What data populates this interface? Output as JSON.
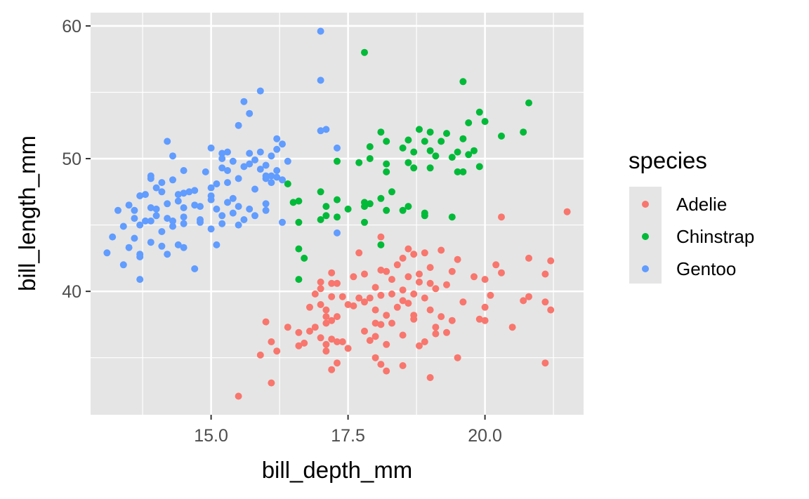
{
  "chart_data": {
    "type": "scatter",
    "title": "",
    "xlabel": "bill_depth_mm",
    "ylabel": "bill_length_mm",
    "xlim": [
      12.8,
      21.8
    ],
    "ylim": [
      30.7,
      61.0
    ],
    "x_ticks": [
      15.0,
      17.5,
      20.0
    ],
    "x_tick_labels": [
      "15.0",
      "17.5",
      "20.0"
    ],
    "x_minor_ticks": [
      13.75,
      16.25,
      18.75,
      21.25
    ],
    "y_ticks": [
      40,
      50,
      60
    ],
    "y_tick_labels": [
      "40",
      "50",
      "60"
    ],
    "y_minor_ticks": [
      35,
      45,
      55
    ],
    "grid": true,
    "panel_background": "#E5E5E5",
    "grid_color": "#FFFFFF",
    "legend": {
      "title": "species",
      "placement": "right",
      "entries": [
        "Adelie",
        "Chinstrap",
        "Gentoo"
      ]
    },
    "series": [
      {
        "name": "Adelie",
        "color": "#F8766D",
        "points": [
          [
            15.5,
            32.1
          ],
          [
            16.0,
            37.7
          ],
          [
            15.9,
            35.2
          ],
          [
            16.1,
            36.2
          ],
          [
            16.1,
            33.1
          ],
          [
            16.2,
            35.5
          ],
          [
            16.6,
            35.9
          ],
          [
            16.6,
            36.9
          ],
          [
            16.4,
            37.3
          ],
          [
            16.7,
            36.1
          ],
          [
            16.8,
            37.0
          ],
          [
            16.8,
            38.8
          ],
          [
            16.9,
            37.3
          ],
          [
            16.9,
            39.8
          ],
          [
            17.0,
            36.5
          ],
          [
            17.0,
            40.2
          ],
          [
            17.0,
            40.7
          ],
          [
            17.0,
            39.0
          ],
          [
            17.1,
            38.6
          ],
          [
            17.1,
            37.6
          ],
          [
            17.1,
            35.5
          ],
          [
            17.1,
            36.0
          ],
          [
            17.1,
            38.1
          ],
          [
            17.2,
            36.4
          ],
          [
            17.2,
            40.6
          ],
          [
            17.2,
            41.4
          ],
          [
            17.2,
            39.6
          ],
          [
            17.2,
            34.1
          ],
          [
            17.2,
            37.8
          ],
          [
            17.3,
            34.6
          ],
          [
            17.3,
            36.2
          ],
          [
            17.3,
            38.1
          ],
          [
            17.3,
            40.6
          ],
          [
            17.4,
            39.6
          ],
          [
            17.4,
            36.2
          ],
          [
            17.5,
            35.7
          ],
          [
            17.5,
            39.0
          ],
          [
            17.6,
            41.1
          ],
          [
            17.6,
            38.9
          ],
          [
            17.7,
            39.5
          ],
          [
            17.7,
            42.9
          ],
          [
            17.8,
            41.3
          ],
          [
            17.8,
            37.0
          ],
          [
            17.8,
            39.2
          ],
          [
            17.9,
            36.3
          ],
          [
            17.9,
            39.5
          ],
          [
            18.0,
            36.6
          ],
          [
            18.0,
            37.6
          ],
          [
            18.0,
            40.3
          ],
          [
            18.0,
            35.0
          ],
          [
            18.0,
            38.6
          ],
          [
            18.1,
            44.1
          ],
          [
            18.1,
            37.5
          ],
          [
            18.1,
            39.7
          ],
          [
            18.1,
            34.5
          ],
          [
            18.1,
            41.6
          ],
          [
            18.2,
            41.5
          ],
          [
            18.2,
            38.2
          ],
          [
            18.2,
            36.0
          ],
          [
            18.2,
            34.0
          ],
          [
            18.3,
            39.8
          ],
          [
            18.3,
            37.6
          ],
          [
            18.3,
            40.9
          ],
          [
            18.4,
            42.0
          ],
          [
            18.4,
            38.8
          ],
          [
            18.5,
            39.3
          ],
          [
            18.5,
            42.5
          ],
          [
            18.5,
            36.7
          ],
          [
            18.5,
            40.1
          ],
          [
            18.5,
            34.4
          ],
          [
            18.6,
            43.2
          ],
          [
            18.6,
            41.1
          ],
          [
            18.6,
            39.1
          ],
          [
            18.7,
            37.9
          ],
          [
            18.7,
            42.8
          ],
          [
            18.7,
            39.8
          ],
          [
            18.7,
            38.2
          ],
          [
            18.8,
            40.7
          ],
          [
            18.8,
            35.9
          ],
          [
            18.8,
            41.3
          ],
          [
            18.9,
            36.2
          ],
          [
            18.9,
            39.5
          ],
          [
            18.9,
            42.9
          ],
          [
            19.0,
            40.6
          ],
          [
            19.0,
            38.6
          ],
          [
            19.0,
            33.5
          ],
          [
            19.0,
            41.8
          ],
          [
            19.1,
            40.2
          ],
          [
            19.1,
            37.3
          ],
          [
            19.1,
            36.8
          ],
          [
            19.2,
            43.1
          ],
          [
            19.2,
            38.1
          ],
          [
            19.3,
            40.5
          ],
          [
            19.3,
            36.9
          ],
          [
            19.4,
            41.5
          ],
          [
            19.4,
            37.8
          ],
          [
            19.5,
            42.4
          ],
          [
            19.5,
            35.0
          ],
          [
            19.6,
            39.2
          ],
          [
            19.8,
            41.1
          ],
          [
            19.9,
            37.9
          ],
          [
            20.0,
            38.8
          ],
          [
            20.0,
            37.8
          ],
          [
            20.0,
            40.9
          ],
          [
            20.1,
            39.7
          ],
          [
            20.2,
            42.0
          ],
          [
            20.3,
            45.6
          ],
          [
            20.3,
            41.4
          ],
          [
            20.5,
            37.3
          ],
          [
            20.7,
            39.3
          ],
          [
            20.8,
            39.6
          ],
          [
            20.8,
            42.5
          ],
          [
            21.1,
            41.3
          ],
          [
            21.1,
            39.2
          ],
          [
            21.1,
            34.6
          ],
          [
            21.2,
            42.3
          ],
          [
            21.2,
            38.6
          ],
          [
            21.5,
            46.0
          ]
        ]
      },
      {
        "name": "Chinstrap",
        "color": "#00BA38",
        "points": [
          [
            17.8,
            58.0
          ],
          [
            19.6,
            55.8
          ],
          [
            20.8,
            54.2
          ],
          [
            19.9,
            53.5
          ],
          [
            20.0,
            52.8
          ],
          [
            19.7,
            52.7
          ],
          [
            20.7,
            52.0
          ],
          [
            19.0,
            52.0
          ],
          [
            18.8,
            52.2
          ],
          [
            18.1,
            52.0
          ],
          [
            19.3,
            51.9
          ],
          [
            20.3,
            51.7
          ],
          [
            19.2,
            51.3
          ],
          [
            18.2,
            51.3
          ],
          [
            19.6,
            51.5
          ],
          [
            18.9,
            51.3
          ],
          [
            18.6,
            51.4
          ],
          [
            17.9,
            50.9
          ],
          [
            18.5,
            50.8
          ],
          [
            18.7,
            50.5
          ],
          [
            19.0,
            50.6
          ],
          [
            19.1,
            50.2
          ],
          [
            19.5,
            50.5
          ],
          [
            19.8,
            50.6
          ],
          [
            17.9,
            50.0
          ],
          [
            18.2,
            49.6
          ],
          [
            18.6,
            49.7
          ],
          [
            19.4,
            50.1
          ],
          [
            19.7,
            50.3
          ],
          [
            17.7,
            49.7
          ],
          [
            18.7,
            49.3
          ],
          [
            19.0,
            49.3
          ],
          [
            18.2,
            49.0
          ],
          [
            19.5,
            49.0
          ],
          [
            19.6,
            49.0
          ],
          [
            19.9,
            49.4
          ],
          [
            17.3,
            49.8
          ],
          [
            16.4,
            48.1
          ],
          [
            17.0,
            47.5
          ],
          [
            16.6,
            46.8
          ],
          [
            16.5,
            46.7
          ],
          [
            17.1,
            46.4
          ],
          [
            17.3,
            46.9
          ],
          [
            17.5,
            46.2
          ],
          [
            17.8,
            46.4
          ],
          [
            17.8,
            46.7
          ],
          [
            17.9,
            46.6
          ],
          [
            18.1,
            47.0
          ],
          [
            18.3,
            47.5
          ],
          [
            18.5,
            46.1
          ],
          [
            18.6,
            46.4
          ],
          [
            18.9,
            45.9
          ],
          [
            17.1,
            45.7
          ],
          [
            17.0,
            45.4
          ],
          [
            17.3,
            45.6
          ],
          [
            17.8,
            45.2
          ],
          [
            18.2,
            46.1
          ],
          [
            18.9,
            45.7
          ],
          [
            19.4,
            45.6
          ],
          [
            16.6,
            45.2
          ],
          [
            16.6,
            43.2
          ],
          [
            16.7,
            42.5
          ],
          [
            16.6,
            40.9
          ],
          [
            18.1,
            43.5
          ]
        ]
      },
      {
        "name": "Gentoo",
        "color": "#619CFF",
        "points": [
          [
            17.0,
            59.6
          ],
          [
            17.0,
            55.9
          ],
          [
            15.9,
            55.1
          ],
          [
            15.6,
            54.3
          ],
          [
            15.7,
            53.4
          ],
          [
            15.5,
            52.5
          ],
          [
            17.0,
            52.1
          ],
          [
            17.1,
            52.2
          ],
          [
            14.2,
            51.3
          ],
          [
            16.2,
            51.5
          ],
          [
            16.3,
            51.1
          ],
          [
            15.0,
            50.8
          ],
          [
            15.2,
            50.4
          ],
          [
            15.3,
            50.5
          ],
          [
            15.7,
            50.4
          ],
          [
            15.9,
            50.5
          ],
          [
            16.1,
            50.2
          ],
          [
            16.2,
            50.7
          ],
          [
            14.3,
            50.2
          ],
          [
            15.2,
            50.0
          ],
          [
            15.4,
            49.8
          ],
          [
            15.6,
            49.4
          ],
          [
            15.7,
            49.6
          ],
          [
            15.8,
            49.9
          ],
          [
            16.0,
            49.5
          ],
          [
            16.2,
            49.1
          ],
          [
            16.4,
            49.8
          ],
          [
            17.3,
            50.8
          ],
          [
            14.5,
            49.1
          ],
          [
            14.9,
            49.0
          ],
          [
            15.2,
            49.3
          ],
          [
            15.3,
            49.1
          ],
          [
            15.9,
            49.2
          ],
          [
            16.0,
            48.7
          ],
          [
            16.1,
            48.7
          ],
          [
            13.9,
            48.7
          ],
          [
            13.9,
            48.5
          ],
          [
            14.0,
            47.8
          ],
          [
            14.1,
            48.2
          ],
          [
            14.3,
            48.4
          ],
          [
            14.6,
            47.5
          ],
          [
            15.0,
            47.8
          ],
          [
            15.1,
            48.1
          ],
          [
            15.3,
            48.2
          ],
          [
            15.5,
            48.5
          ],
          [
            15.8,
            47.7
          ],
          [
            16.0,
            48.5
          ],
          [
            16.1,
            48.2
          ],
          [
            16.2,
            48.6
          ],
          [
            16.3,
            48.4
          ],
          [
            13.7,
            47.2
          ],
          [
            13.8,
            47.3
          ],
          [
            14.1,
            47.5
          ],
          [
            14.4,
            47.3
          ],
          [
            14.5,
            47.4
          ],
          [
            14.7,
            47.6
          ],
          [
            15.0,
            47.2
          ],
          [
            15.4,
            47.0
          ],
          [
            13.3,
            46.1
          ],
          [
            13.5,
            46.5
          ],
          [
            13.6,
            46.1
          ],
          [
            13.9,
            46.3
          ],
          [
            14.0,
            46.2
          ],
          [
            14.2,
            46.6
          ],
          [
            14.4,
            46.8
          ],
          [
            14.5,
            46.3
          ],
          [
            14.7,
            46.5
          ],
          [
            14.8,
            46.4
          ],
          [
            15.0,
            46.9
          ],
          [
            15.1,
            46.2
          ],
          [
            15.3,
            46.7
          ],
          [
            15.5,
            46.4
          ],
          [
            15.7,
            46.2
          ],
          [
            16.0,
            46.6
          ],
          [
            13.6,
            45.5
          ],
          [
            13.8,
            45.3
          ],
          [
            14.0,
            45.7
          ],
          [
            14.2,
            45.5
          ],
          [
            14.3,
            45.3
          ],
          [
            14.5,
            45.6
          ],
          [
            14.8,
            45.4
          ],
          [
            15.2,
            45.7
          ],
          [
            15.4,
            45.9
          ],
          [
            15.8,
            45.7
          ],
          [
            16.0,
            46.1
          ],
          [
            13.4,
            44.9
          ],
          [
            13.7,
            45.0
          ],
          [
            13.9,
            45.3
          ],
          [
            14.1,
            44.5
          ],
          [
            14.3,
            44.9
          ],
          [
            14.5,
            45.1
          ],
          [
            14.8,
            45.2
          ],
          [
            15.0,
            44.7
          ],
          [
            15.2,
            45.1
          ],
          [
            15.5,
            45.0
          ],
          [
            15.6,
            45.4
          ],
          [
            16.3,
            45.2
          ],
          [
            13.2,
            44.1
          ],
          [
            13.6,
            44.0
          ],
          [
            13.9,
            43.7
          ],
          [
            14.1,
            43.4
          ],
          [
            14.4,
            43.5
          ],
          [
            14.5,
            43.3
          ],
          [
            15.1,
            43.5
          ],
          [
            17.3,
            44.4
          ],
          [
            13.1,
            42.9
          ],
          [
            13.5,
            43.3
          ],
          [
            13.7,
            42.8
          ],
          [
            14.2,
            42.8
          ],
          [
            13.7,
            42.6
          ],
          [
            13.4,
            42.0
          ],
          [
            14.7,
            41.7
          ],
          [
            13.7,
            40.9
          ]
        ]
      }
    ]
  }
}
